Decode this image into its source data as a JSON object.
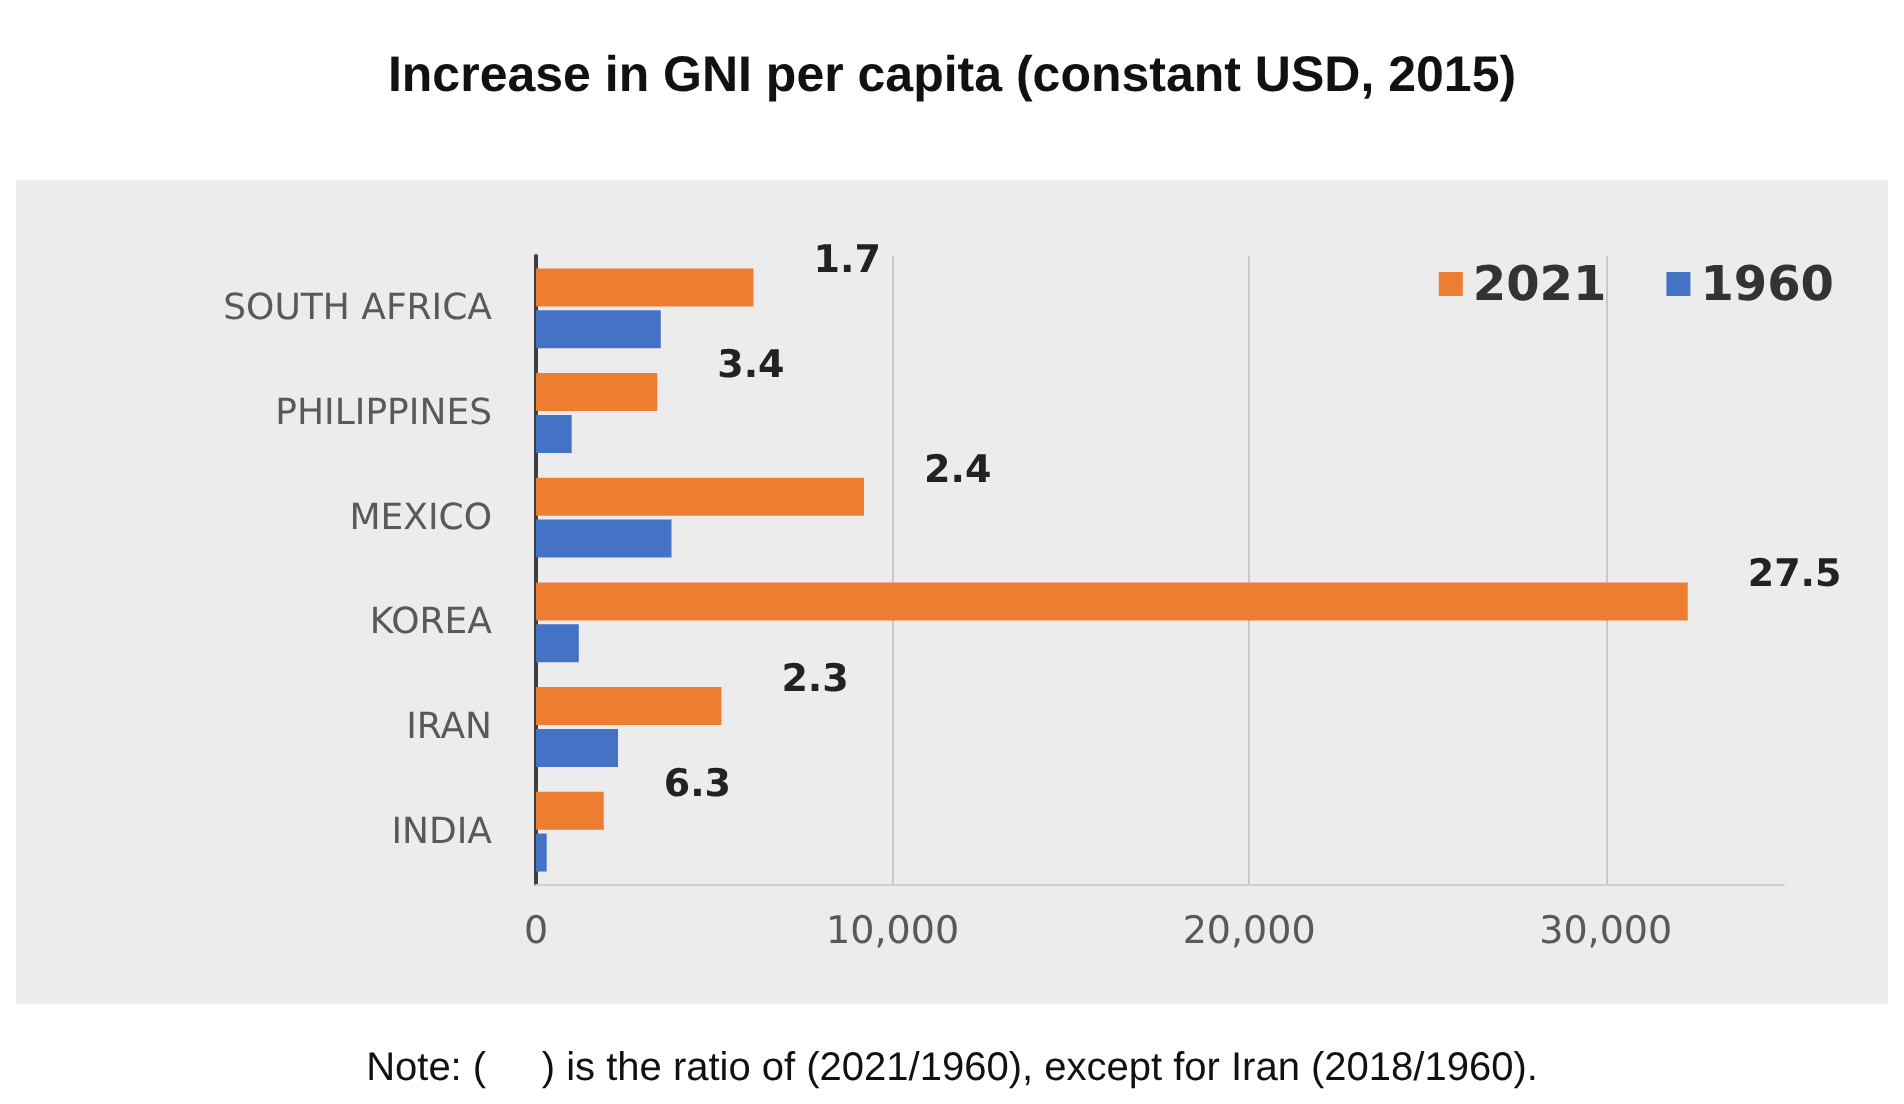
{
  "chart_data": {
    "type": "bar",
    "orientation": "horizontal",
    "title": "Increase in GNI per capita (constant USD, 2015)",
    "categories": [
      "SOUTH AFRICA",
      "PHILIPPINES",
      "MEXICO",
      "KOREA",
      "IRAN",
      "INDIA"
    ],
    "series": [
      {
        "name": "2021",
        "color": "#ed7d31",
        "values": [
          6100,
          3400,
          9200,
          32300,
          5200,
          1900
        ]
      },
      {
        "name": "1960",
        "color": "#4472c4",
        "values": [
          3500,
          1000,
          3800,
          1200,
          2300,
          300
        ]
      }
    ],
    "xlim": [
      0,
      35000
    ],
    "xticks": [
      0,
      {
        "value": 10000,
        "label": "10,000"
      },
      {
        "value": 20000,
        "label": "20,000"
      },
      {
        "value": 30000,
        "label": "30,000"
      }
    ],
    "grid": "x",
    "legend": "top right",
    "annotations": [
      {
        "text": "1.7",
        "x": 6100,
        "y": "SOUTH AFRICA"
      },
      {
        "text": "3.4",
        "x": 3400,
        "y": "PHILIPPINES"
      },
      {
        "text": "2.4",
        "x": 9200,
        "y": "MEXICO"
      },
      {
        "text": "27.5",
        "x": 32300,
        "y": "KOREA"
      },
      {
        "text": "2.3",
        "x": 5200,
        "y": "IRAN"
      },
      {
        "text": "6.3",
        "x": 1900,
        "y": "INDIA"
      },
      "Note: (     ) is the ratio of (2021/1960), except for Iran (2018/1960)."
    ]
  }
}
